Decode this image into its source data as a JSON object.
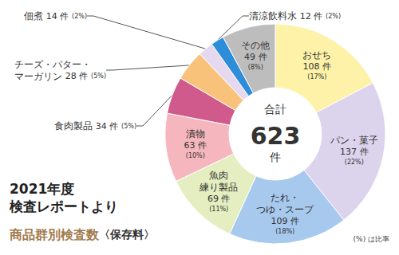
{
  "chart_data": {
    "type": "pie",
    "title": "2021年度\n検査レポートより",
    "subtitle": "商品群別検査数",
    "subtitle_note": "〈保存料〉",
    "note": "(%) は比率",
    "categories": [
      "おせち",
      "パン・菓子",
      "たれ・\nつゆ・スープ",
      "魚肉\n練り製品",
      "漬物",
      "食肉製品",
      "チーズ・バター・\nマーガリン",
      "佃煮",
      "清涼飲料水",
      "その他"
    ],
    "values": [
      108,
      137,
      109,
      69,
      63,
      34,
      28,
      14,
      12,
      49
    ],
    "value_labels": [
      "108 件",
      "137 件",
      "109 件",
      "69 件",
      "63 件",
      "34 件",
      "28 件",
      "14 件",
      "12 件",
      "49 件"
    ],
    "percent_labels": [
      "(17%)",
      "(22%)",
      "(18%)",
      "(11%)",
      "(10%)",
      "(5%)",
      "(5%)",
      "(2%)",
      "(2%)",
      "(8%)"
    ],
    "colors": [
      "#fdf2a7",
      "#dcd3ec",
      "#a7c9ee",
      "#e4eec0",
      "#f5b7bd",
      "#cf5a8b",
      "#f8c27a",
      "#e6d9ef",
      "#2e8dd8",
      "#bdbdbd"
    ],
    "total": {
      "label": "合計",
      "value": 623,
      "unit": "件"
    },
    "data_labels": true
  }
}
